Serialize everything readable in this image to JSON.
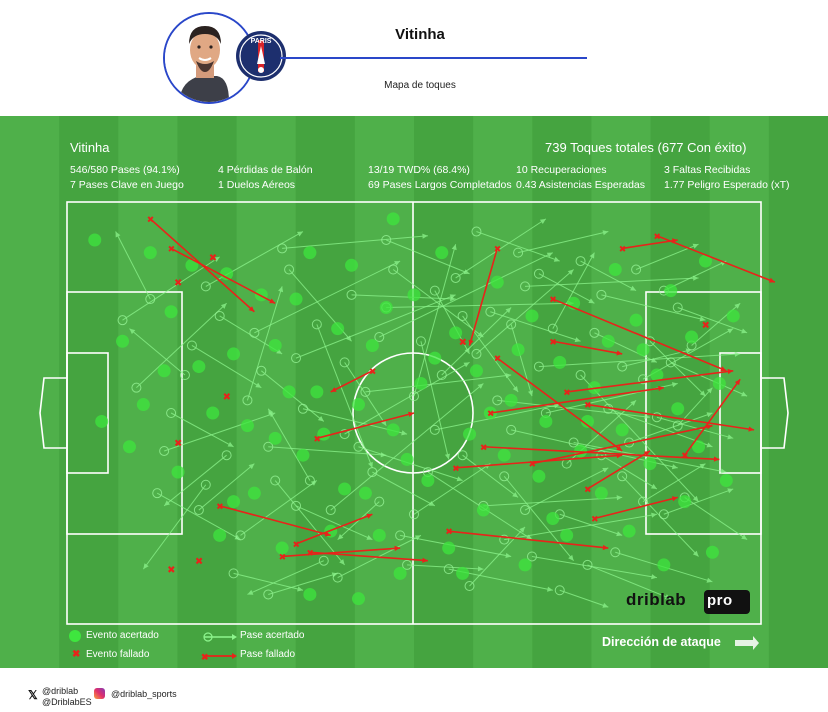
{
  "header": {
    "player_name": "Vitinha",
    "subtitle": "Mapa de toques",
    "club_badge_text": "PARIS"
  },
  "stats": {
    "player": "Vitinha",
    "touches_total": "739 Toques totales (677 Con éxito)",
    "col1": [
      "546/580 Pases (94.1%)",
      "7 Pases Clave en Juego"
    ],
    "col2": [
      "4 Pérdidas de Balón",
      "1 Duelos Aéreos"
    ],
    "col3": [
      "13/19 TWD% (68.4%)",
      "69 Pases Largos Completados"
    ],
    "col4": [
      "10 Recuperaciones",
      "0.43 Asistencias Esperadas"
    ],
    "col5": [
      "3 Faltas Recibidas",
      "1.77 Peligro Esperado (xT)"
    ]
  },
  "legend": {
    "event_success": "Evento acertado",
    "event_fail": "Evento fallado",
    "pass_success": "Pase acertado",
    "pass_fail": "Pase fallado",
    "attack_direction": "Dirección de ataque"
  },
  "brand": {
    "name_left": "driblab",
    "name_right": "pro"
  },
  "footer": {
    "x_handle_1": "@driblab",
    "x_handle_2": "@DriblabES",
    "instagram": "@driblab_sports"
  },
  "colors": {
    "success": "#3ee63e",
    "fail": "#e8231a",
    "pitch_light": "#4fb04a",
    "pitch_dark": "#45a440",
    "accent": "#2a47c9"
  },
  "chart_data": {
    "type": "scatter",
    "title": "Mapa de toques",
    "xlabel": "",
    "ylabel": "",
    "xlim": [
      0,
      100
    ],
    "ylim": [
      0,
      100
    ],
    "failed_events": [
      [
        21,
        13
      ],
      [
        16,
        19
      ],
      [
        19,
        85
      ],
      [
        15,
        87
      ],
      [
        16,
        57
      ],
      [
        23,
        46
      ],
      [
        57,
        33
      ],
      [
        92,
        29
      ]
    ],
    "failed_passes": [
      [
        12,
        4,
        27,
        26
      ],
      [
        15,
        11,
        30,
        24
      ],
      [
        62,
        11,
        58,
        34
      ],
      [
        85,
        8,
        102,
        19
      ],
      [
        80,
        11,
        88,
        9
      ],
      [
        70,
        23,
        95,
        40
      ],
      [
        70,
        33,
        80,
        36
      ],
      [
        44,
        40,
        38,
        45
      ],
      [
        62,
        37,
        80,
        59
      ],
      [
        72,
        45,
        96,
        40
      ],
      [
        75,
        48,
        99,
        54
      ],
      [
        61,
        50,
        86,
        44
      ],
      [
        36,
        56,
        50,
        50
      ],
      [
        60,
        58,
        94,
        61
      ],
      [
        56,
        63,
        80,
        60
      ],
      [
        75,
        68,
        84,
        59
      ],
      [
        22,
        72,
        38,
        79
      ],
      [
        33,
        81,
        44,
        74
      ],
      [
        35,
        83,
        52,
        85
      ],
      [
        31,
        84,
        48,
        82
      ],
      [
        55,
        78,
        78,
        82
      ],
      [
        76,
        75,
        88,
        70
      ],
      [
        89,
        60,
        97,
        42
      ],
      [
        67,
        62,
        93,
        53
      ]
    ],
    "successful_passes": [
      [
        8,
        28,
        22,
        13
      ],
      [
        10,
        44,
        23,
        24
      ],
      [
        14,
        59,
        30,
        50
      ],
      [
        20,
        67,
        11,
        87
      ],
      [
        30,
        66,
        40,
        86
      ],
      [
        38,
        73,
        60,
        43
      ],
      [
        40,
        55,
        58,
        38
      ],
      [
        45,
        32,
        70,
        12
      ],
      [
        46,
        25,
        73,
        24
      ],
      [
        50,
        46,
        56,
        10
      ],
      [
        52,
        64,
        67,
        80
      ],
      [
        57,
        27,
        65,
        45
      ],
      [
        60,
        72,
        80,
        70
      ],
      [
        63,
        80,
        85,
        74
      ],
      [
        64,
        54,
        88,
        63
      ],
      [
        66,
        20,
        91,
        18
      ],
      [
        70,
        30,
        76,
        12
      ],
      [
        72,
        62,
        82,
        47
      ],
      [
        73,
        57,
        95,
        64
      ],
      [
        74,
        41,
        91,
        71
      ],
      [
        78,
        49,
        93,
        58
      ],
      [
        80,
        65,
        91,
        84
      ],
      [
        84,
        33,
        92,
        46
      ],
      [
        86,
        74,
        96,
        68
      ],
      [
        88,
        25,
        98,
        31
      ],
      [
        18,
        34,
        28,
        44
      ],
      [
        26,
        47,
        31,
        20
      ],
      [
        27,
        31,
        48,
        14
      ],
      [
        33,
        37,
        56,
        22
      ],
      [
        35,
        66,
        29,
        49
      ],
      [
        41,
        22,
        56,
        23
      ],
      [
        43,
        45,
        64,
        41
      ],
      [
        45,
        71,
        39,
        80
      ],
      [
        49,
        86,
        60,
        87
      ],
      [
        54,
        41,
        64,
        25
      ],
      [
        55,
        87,
        70,
        92
      ],
      [
        59,
        36,
        73,
        16
      ],
      [
        62,
        47,
        84,
        51
      ],
      [
        67,
        84,
        85,
        89
      ],
      [
        68,
        39,
        97,
        36
      ],
      [
        71,
        74,
        80,
        79
      ],
      [
        77,
        22,
        92,
        28
      ],
      [
        79,
        83,
        93,
        90
      ],
      [
        81,
        57,
        93,
        50
      ],
      [
        83,
        42,
        96,
        30
      ],
      [
        12,
        23,
        7,
        7
      ],
      [
        13,
        69,
        25,
        80
      ],
      [
        17,
        41,
        9,
        30
      ],
      [
        24,
        88,
        34,
        92
      ],
      [
        29,
        58,
        46,
        60
      ],
      [
        31,
        11,
        52,
        8
      ],
      [
        36,
        29,
        44,
        63
      ],
      [
        39,
        89,
        51,
        79
      ],
      [
        42,
        58,
        57,
        66
      ],
      [
        47,
        16,
        60,
        32
      ],
      [
        48,
        79,
        64,
        84
      ],
      [
        51,
        33,
        55,
        61
      ],
      [
        53,
        54,
        71,
        48
      ],
      [
        56,
        18,
        69,
        4
      ],
      [
        58,
        91,
        66,
        77
      ],
      [
        61,
        26,
        74,
        33
      ],
      [
        63,
        65,
        73,
        85
      ],
      [
        65,
        12,
        78,
        7
      ],
      [
        69,
        50,
        88,
        43
      ],
      [
        75,
        86,
        87,
        94
      ],
      [
        76,
        31,
        85,
        38
      ],
      [
        82,
        16,
        91,
        10
      ],
      [
        85,
        51,
        96,
        56
      ],
      [
        87,
        38,
        98,
        46
      ],
      [
        89,
        70,
        98,
        80
      ],
      [
        20,
        20,
        34,
        7
      ],
      [
        23,
        60,
        14,
        72
      ],
      [
        25,
        79,
        36,
        66
      ],
      [
        28,
        40,
        37,
        52
      ],
      [
        32,
        16,
        41,
        33
      ],
      [
        34,
        49,
        49,
        55
      ],
      [
        37,
        85,
        26,
        93
      ],
      [
        40,
        38,
        46,
        53
      ],
      [
        44,
        64,
        53,
        72
      ],
      [
        46,
        9,
        58,
        17
      ],
      [
        50,
        74,
        61,
        62
      ],
      [
        53,
        21,
        58,
        36
      ],
      [
        57,
        60,
        65,
        70
      ],
      [
        59,
        7,
        71,
        14
      ],
      [
        64,
        29,
        67,
        46
      ],
      [
        66,
        73,
        78,
        63
      ],
      [
        68,
        17,
        76,
        24
      ],
      [
        71,
        92,
        78,
        96
      ],
      [
        74,
        14,
        82,
        21
      ],
      [
        77,
        60,
        85,
        68
      ],
      [
        80,
        39,
        90,
        35
      ],
      [
        83,
        71,
        92,
        62
      ],
      [
        86,
        21,
        95,
        14
      ],
      [
        88,
        53,
        93,
        44
      ],
      [
        90,
        34,
        97,
        24
      ],
      [
        15,
        50,
        24,
        58
      ],
      [
        19,
        73,
        27,
        62
      ],
      [
        22,
        27,
        31,
        36
      ],
      [
        29,
        93,
        39,
        88
      ],
      [
        33,
        72,
        44,
        80
      ]
    ],
    "successful_events": [
      [
        4,
        9
      ],
      [
        12,
        12
      ],
      [
        15,
        26
      ],
      [
        8,
        33
      ],
      [
        19,
        39
      ],
      [
        23,
        17
      ],
      [
        26,
        53
      ],
      [
        11,
        48
      ],
      [
        16,
        64
      ],
      [
        22,
        79
      ],
      [
        30,
        34
      ],
      [
        33,
        23
      ],
      [
        34,
        60
      ],
      [
        36,
        45
      ],
      [
        38,
        78
      ],
      [
        41,
        15
      ],
      [
        43,
        69
      ],
      [
        44,
        34
      ],
      [
        47,
        54
      ],
      [
        48,
        88
      ],
      [
        50,
        22
      ],
      [
        51,
        43
      ],
      [
        52,
        66
      ],
      [
        54,
        12
      ],
      [
        55,
        82
      ],
      [
        56,
        31
      ],
      [
        58,
        55
      ],
      [
        59,
        40
      ],
      [
        60,
        73
      ],
      [
        62,
        19
      ],
      [
        63,
        60
      ],
      [
        64,
        47
      ],
      [
        66,
        86
      ],
      [
        67,
        27
      ],
      [
        68,
        65
      ],
      [
        69,
        52
      ],
      [
        71,
        38
      ],
      [
        72,
        79
      ],
      [
        73,
        24
      ],
      [
        74,
        59
      ],
      [
        76,
        44
      ],
      [
        77,
        69
      ],
      [
        78,
        33
      ],
      [
        79,
        16
      ],
      [
        80,
        54
      ],
      [
        81,
        78
      ],
      [
        82,
        28
      ],
      [
        84,
        62
      ],
      [
        85,
        41
      ],
      [
        86,
        86
      ],
      [
        87,
        21
      ],
      [
        88,
        49
      ],
      [
        89,
        71
      ],
      [
        90,
        32
      ],
      [
        91,
        58
      ],
      [
        92,
        14
      ],
      [
        93,
        83
      ],
      [
        94,
        43
      ],
      [
        95,
        66
      ],
      [
        96,
        27
      ],
      [
        5,
        52
      ],
      [
        9,
        58
      ],
      [
        14,
        40
      ],
      [
        18,
        15
      ],
      [
        21,
        50
      ],
      [
        24,
        36
      ],
      [
        27,
        69
      ],
      [
        28,
        22
      ],
      [
        31,
        82
      ],
      [
        32,
        45
      ],
      [
        35,
        12
      ],
      [
        37,
        55
      ],
      [
        39,
        30
      ],
      [
        40,
        68
      ],
      [
        42,
        48
      ],
      [
        45,
        79
      ],
      [
        46,
        25
      ],
      [
        49,
        61
      ],
      [
        53,
        37
      ],
      [
        57,
        88
      ],
      [
        61,
        50
      ],
      [
        65,
        35
      ],
      [
        70,
        75
      ],
      [
        75,
        52
      ],
      [
        83,
        35
      ],
      [
        24,
        71
      ],
      [
        30,
        56
      ],
      [
        35,
        93
      ],
      [
        42,
        94
      ],
      [
        47,
        4
      ]
    ]
  }
}
